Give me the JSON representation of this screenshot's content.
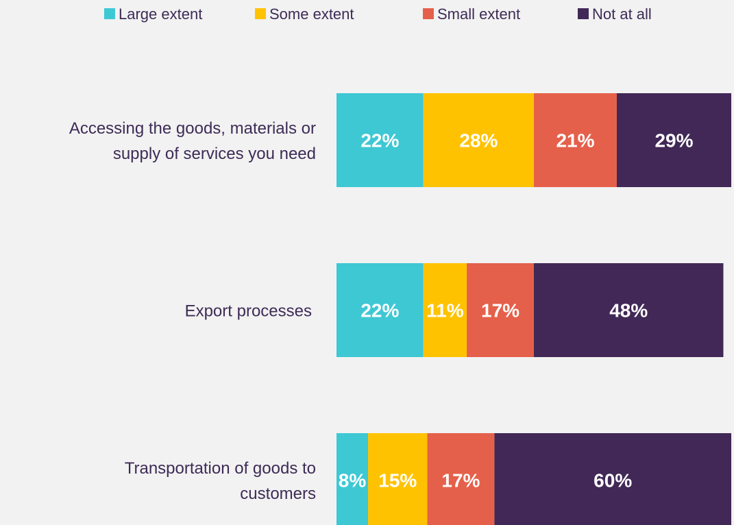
{
  "chart_data": {
    "type": "bar",
    "orientation": "horizontal",
    "stacked": true,
    "title": "",
    "xlabel": "",
    "ylabel": "",
    "xlim": [
      0,
      100
    ],
    "grid": false,
    "legend_position": "top",
    "categories": [
      [
        "Accessing the goods, materials or",
        "supply of services you need"
      ],
      [
        "Export processes"
      ],
      [
        "Transportation of goods to",
        "customers"
      ]
    ],
    "series": [
      {
        "name": "Large extent",
        "color": "#3ec8d4",
        "values": [
          22,
          22,
          8
        ],
        "labels": [
          "22%",
          "22%",
          "8%"
        ]
      },
      {
        "name": "Some extent",
        "color": "#ffc200",
        "values": [
          28,
          11,
          15
        ],
        "labels": [
          "28%",
          "11%",
          "15%"
        ]
      },
      {
        "name": "Small extent",
        "color": "#e5604a",
        "values": [
          21,
          17,
          17
        ],
        "labels": [
          "21%",
          "17%",
          "17%"
        ]
      },
      {
        "name": "Not at all",
        "color": "#412856",
        "values": [
          29,
          48,
          60
        ],
        "labels": [
          "29%",
          "48%",
          "60%"
        ]
      }
    ]
  }
}
